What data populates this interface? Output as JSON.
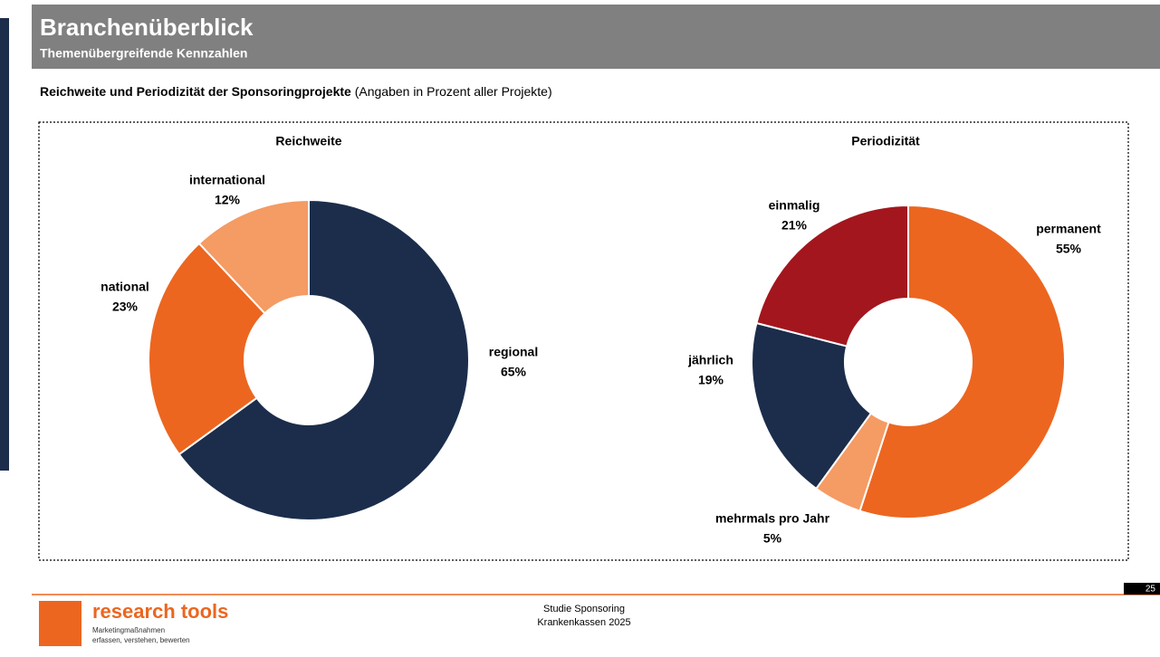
{
  "header": {
    "title": "Branchenüberblick",
    "subtitle": "Themenübergreifende Kennzahlen"
  },
  "heading": {
    "bold": "Reichweite und Periodizität der Sponsoringprojekte",
    "note": "(Angaben in Prozent aller Projekte)"
  },
  "chart_data": [
    {
      "type": "pie",
      "title": "Reichweite",
      "categories": [
        "regional",
        "national",
        "international"
      ],
      "values": [
        65,
        23,
        12
      ],
      "value_labels": [
        "65%",
        "23%",
        "12%"
      ],
      "colors": [
        "#1b2d4b",
        "#ec6620",
        "#f59b64"
      ]
    },
    {
      "type": "pie",
      "title": "Periodizität",
      "categories": [
        "permanent",
        "mehrmals pro Jahr",
        "jährlich",
        "einmalig"
      ],
      "values": [
        55,
        5,
        19,
        21
      ],
      "value_labels": [
        "55%",
        "5%",
        "19%",
        "21%"
      ],
      "colors": [
        "#ec6620",
        "#f59b64",
        "#1b2d4b",
        "#a3161e"
      ]
    }
  ],
  "footer": {
    "brand": "research tools",
    "tagline": [
      "Marketingmaßnahmen",
      "erfassen, verstehen, bewerten"
    ],
    "study": [
      "Studie Sponsoring",
      "Krankenkassen 2025"
    ],
    "page": "25"
  }
}
